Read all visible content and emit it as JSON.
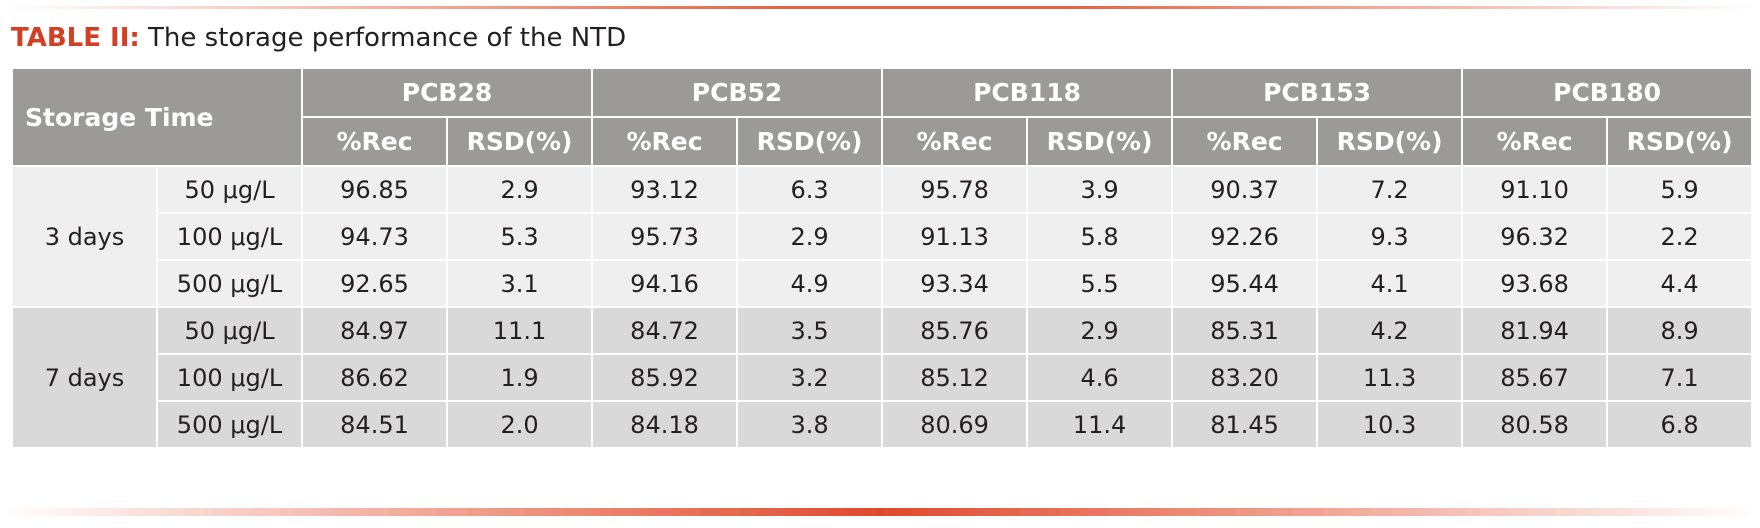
{
  "caption": {
    "label": "TABLE II:",
    "text": "The storage performance of the NTD"
  },
  "table": {
    "row_header": "Storage Time",
    "compounds": [
      "PCB28",
      "PCB52",
      "PCB118",
      "PCB153",
      "PCB180"
    ],
    "sub_headers": [
      "%Rec",
      "RSD(%)"
    ],
    "groups": [
      {
        "label": "3 days",
        "rows": [
          {
            "conc": "50 μg/L",
            "values": [
              "96.85",
              "2.9",
              "93.12",
              "6.3",
              "95.78",
              "3.9",
              "90.37",
              "7.2",
              "91.10",
              "5.9"
            ]
          },
          {
            "conc": "100 μg/L",
            "values": [
              "94.73",
              "5.3",
              "95.73",
              "2.9",
              "91.13",
              "5.8",
              "92.26",
              "9.3",
              "96.32",
              "2.2"
            ]
          },
          {
            "conc": "500 μg/L",
            "values": [
              "92.65",
              "3.1",
              "94.16",
              "4.9",
              "93.34",
              "5.5",
              "95.44",
              "4.1",
              "93.68",
              "4.4"
            ]
          }
        ]
      },
      {
        "label": "7 days",
        "rows": [
          {
            "conc": "50 μg/L",
            "values": [
              "84.97",
              "11.1",
              "84.72",
              "3.5",
              "85.76",
              "2.9",
              "85.31",
              "4.2",
              "81.94",
              "8.9"
            ]
          },
          {
            "conc": "100 μg/L",
            "values": [
              "86.62",
              "1.9",
              "85.92",
              "3.2",
              "85.12",
              "4.6",
              "83.20",
              "11.3",
              "85.67",
              "7.1"
            ]
          },
          {
            "conc": "500 μg/L",
            "values": [
              "84.51",
              "2.0",
              "84.18",
              "3.8",
              "80.69",
              "11.4",
              "81.45",
              "10.3",
              "80.58",
              "6.8"
            ]
          }
        ]
      }
    ]
  }
}
